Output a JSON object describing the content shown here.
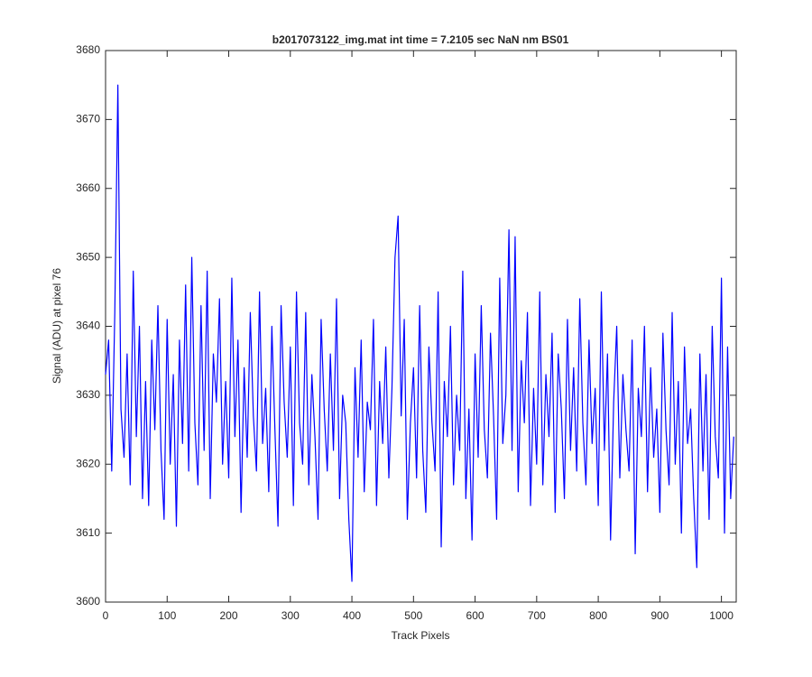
{
  "chart_data": {
    "type": "line",
    "title": "b2017073122_img.mat int time = 7.2105 sec  NaN nm BS01",
    "x_label": "Track Pixels",
    "y_label": "Signal (ADU) at pixel 76",
    "xlim": [
      0,
      1024
    ],
    "ylim": [
      3600,
      3680
    ],
    "xticks": [
      0,
      100,
      200,
      300,
      400,
      500,
      600,
      700,
      800,
      900,
      1000
    ],
    "yticks": [
      3600,
      3610,
      3620,
      3630,
      3640,
      3650,
      3660,
      3670,
      3680
    ],
    "grid": false,
    "x": [
      0,
      5,
      10,
      15,
      20,
      25,
      30,
      35,
      40,
      45,
      50,
      55,
      60,
      65,
      70,
      75,
      80,
      85,
      90,
      95,
      100,
      105,
      110,
      115,
      120,
      125,
      130,
      135,
      140,
      145,
      150,
      155,
      160,
      165,
      170,
      175,
      180,
      185,
      190,
      195,
      200,
      205,
      210,
      215,
      220,
      225,
      230,
      235,
      240,
      245,
      250,
      255,
      260,
      265,
      270,
      275,
      280,
      285,
      290,
      295,
      300,
      305,
      310,
      315,
      320,
      325,
      330,
      335,
      340,
      345,
      350,
      355,
      360,
      365,
      370,
      375,
      380,
      385,
      390,
      395,
      400,
      405,
      410,
      415,
      420,
      425,
      430,
      435,
      440,
      445,
      450,
      455,
      460,
      465,
      470,
      475,
      480,
      485,
      490,
      495,
      500,
      505,
      510,
      515,
      520,
      525,
      530,
      535,
      540,
      545,
      550,
      555,
      560,
      565,
      570,
      575,
      580,
      585,
      590,
      595,
      600,
      605,
      610,
      615,
      620,
      625,
      630,
      635,
      640,
      645,
      650,
      655,
      660,
      665,
      670,
      675,
      680,
      685,
      690,
      695,
      700,
      705,
      710,
      715,
      720,
      725,
      730,
      735,
      740,
      745,
      750,
      755,
      760,
      765,
      770,
      775,
      780,
      785,
      790,
      795,
      800,
      805,
      810,
      815,
      820,
      825,
      830,
      835,
      840,
      845,
      850,
      855,
      860,
      865,
      870,
      875,
      880,
      885,
      890,
      895,
      900,
      905,
      910,
      915,
      920,
      925,
      930,
      935,
      940,
      945,
      950,
      955,
      960,
      965,
      970,
      975,
      980,
      985,
      990,
      995,
      1000,
      1005,
      1010,
      1015,
      1020
    ],
    "series": [
      {
        "name": "Signal",
        "color": "#0000ff",
        "values": [
          3633,
          3638,
          3619,
          3642,
          3675,
          3628,
          3621,
          3636,
          3617,
          3648,
          3624,
          3640,
          3615,
          3632,
          3614,
          3638,
          3625,
          3643,
          3622,
          3612,
          3641,
          3620,
          3633,
          3611,
          3638,
          3623,
          3646,
          3619,
          3650,
          3626,
          3617,
          3643,
          3622,
          3648,
          3615,
          3636,
          3629,
          3644,
          3620,
          3632,
          3618,
          3647,
          3624,
          3638,
          3613,
          3634,
          3621,
          3642,
          3627,
          3619,
          3645,
          3623,
          3631,
          3616,
          3640,
          3625,
          3611,
          3643,
          3629,
          3621,
          3637,
          3614,
          3645,
          3626,
          3620,
          3642,
          3617,
          3633,
          3624,
          3612,
          3641,
          3628,
          3619,
          3636,
          3622,
          3644,
          3615,
          3630,
          3626,
          3612,
          3603,
          3634,
          3621,
          3638,
          3616,
          3629,
          3625,
          3641,
          3614,
          3632,
          3623,
          3637,
          3618,
          3631,
          3650,
          3656,
          3627,
          3641,
          3612,
          3626,
          3634,
          3618,
          3643,
          3622,
          3613,
          3637,
          3626,
          3619,
          3645,
          3608,
          3632,
          3624,
          3640,
          3617,
          3630,
          3622,
          3648,
          3615,
          3628,
          3609,
          3636,
          3621,
          3643,
          3625,
          3618,
          3639,
          3627,
          3612,
          3647,
          3623,
          3630,
          3654,
          3622,
          3653,
          3616,
          3635,
          3626,
          3642,
          3614,
          3631,
          3620,
          3645,
          3617,
          3633,
          3624,
          3639,
          3613,
          3636,
          3628,
          3615,
          3641,
          3622,
          3634,
          3619,
          3644,
          3626,
          3617,
          3638,
          3623,
          3631,
          3614,
          3645,
          3622,
          3636,
          3609,
          3629,
          3640,
          3618,
          3633,
          3625,
          3619,
          3638,
          3607,
          3631,
          3624,
          3640,
          3616,
          3634,
          3621,
          3628,
          3613,
          3639,
          3625,
          3617,
          3642,
          3620,
          3632,
          3610,
          3637,
          3623,
          3628,
          3615,
          3605,
          3636,
          3619,
          3633,
          3612,
          3640,
          3624,
          3618,
          3647,
          3610,
          3637,
          3615,
          3624
        ]
      }
    ]
  }
}
